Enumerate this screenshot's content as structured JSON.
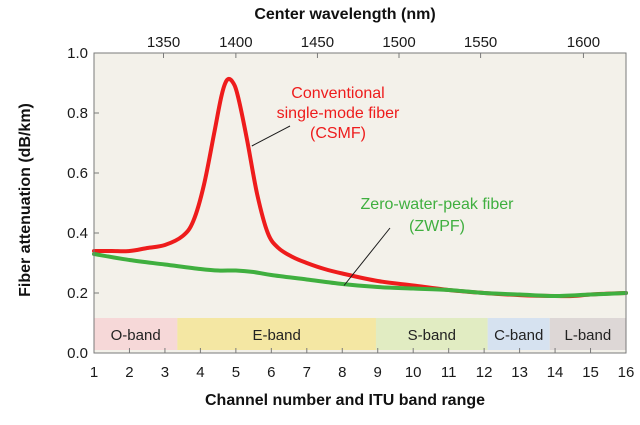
{
  "chart_data": {
    "type": "line",
    "title": "",
    "xlabel": "Channel number and ITU band range",
    "ylabel": "Fiber attenuation (dB/km)",
    "x2label": "Center wavelength (nm)",
    "xlim": [
      1,
      16
    ],
    "ylim": [
      0,
      1.0
    ],
    "xticks": [
      "1",
      "2",
      "3",
      "4",
      "5",
      "6",
      "7",
      "8",
      "9",
      "10",
      "11",
      "12",
      "13",
      "14",
      "15",
      "16"
    ],
    "yticks": [
      "0.0",
      "0.2",
      "0.4",
      "0.6",
      "0.8",
      "1.0"
    ],
    "top_ticks": [
      {
        "x": 2.96,
        "label": "1350"
      },
      {
        "x": 5.0,
        "label": "1400"
      },
      {
        "x": 7.3,
        "label": "1450"
      },
      {
        "x": 9.6,
        "label": "1500"
      },
      {
        "x": 11.9,
        "label": "1550"
      },
      {
        "x": 14.8,
        "label": "1600"
      }
    ],
    "grid": false,
    "plot_background": "#f3f1ea",
    "bands": [
      {
        "label": "O-band",
        "start": 1.0,
        "end": 3.35,
        "color": "#f6d8d8"
      },
      {
        "label": "E-band",
        "start": 3.35,
        "end": 8.95,
        "color": "#f4e7a3"
      },
      {
        "label": "S-band",
        "start": 8.95,
        "end": 12.1,
        "color": "#e1ecc2"
      },
      {
        "label": "C-band",
        "start": 12.1,
        "end": 13.85,
        "color": "#d6e2f0"
      },
      {
        "label": "L-band",
        "start": 13.85,
        "end": 16.0,
        "color": "#ddd7d6"
      }
    ],
    "series": [
      {
        "name": "Conventional single-mode fiber (CSMF)",
        "color": "#ee1c1c",
        "points": [
          [
            1.0,
            0.34
          ],
          [
            1.5,
            0.34
          ],
          [
            2.0,
            0.34
          ],
          [
            2.5,
            0.35
          ],
          [
            3.0,
            0.36
          ],
          [
            3.5,
            0.39
          ],
          [
            3.8,
            0.44
          ],
          [
            4.1,
            0.56
          ],
          [
            4.4,
            0.74
          ],
          [
            4.6,
            0.86
          ],
          [
            4.75,
            0.91
          ],
          [
            4.9,
            0.905
          ],
          [
            5.05,
            0.86
          ],
          [
            5.3,
            0.72
          ],
          [
            5.6,
            0.53
          ],
          [
            5.9,
            0.4
          ],
          [
            6.2,
            0.35
          ],
          [
            6.6,
            0.32
          ],
          [
            7.0,
            0.3
          ],
          [
            7.5,
            0.28
          ],
          [
            8.0,
            0.265
          ],
          [
            9.0,
            0.24
          ],
          [
            10.0,
            0.225
          ],
          [
            11.0,
            0.21
          ],
          [
            12.0,
            0.2
          ],
          [
            13.0,
            0.193
          ],
          [
            14.0,
            0.19
          ],
          [
            14.5,
            0.19
          ],
          [
            15.0,
            0.195
          ],
          [
            15.5,
            0.198
          ],
          [
            16.0,
            0.2
          ]
        ]
      },
      {
        "name": "Zero-water-peak fiber (ZWPF)",
        "color": "#3faf3f",
        "points": [
          [
            1.0,
            0.33
          ],
          [
            2.0,
            0.31
          ],
          [
            3.0,
            0.295
          ],
          [
            4.0,
            0.28
          ],
          [
            4.5,
            0.275
          ],
          [
            5.0,
            0.275
          ],
          [
            5.5,
            0.27
          ],
          [
            6.0,
            0.26
          ],
          [
            7.0,
            0.245
          ],
          [
            8.0,
            0.23
          ],
          [
            9.0,
            0.22
          ],
          [
            10.0,
            0.215
          ],
          [
            11.0,
            0.21
          ],
          [
            12.0,
            0.2
          ],
          [
            13.0,
            0.195
          ],
          [
            14.0,
            0.19
          ],
          [
            15.0,
            0.195
          ],
          [
            16.0,
            0.2
          ]
        ]
      }
    ],
    "annotations": [
      {
        "color": "#ee1c1c",
        "lines": [
          "Conventional",
          "single-mode fiber",
          "(CSMF)"
        ],
        "pointer": [
          5.45,
          0.69
        ]
      },
      {
        "color": "#3faf3f",
        "lines": [
          "Zero-water-peak fiber",
          "(ZWPF)"
        ],
        "pointer": [
          8.05,
          0.225
        ]
      }
    ]
  }
}
